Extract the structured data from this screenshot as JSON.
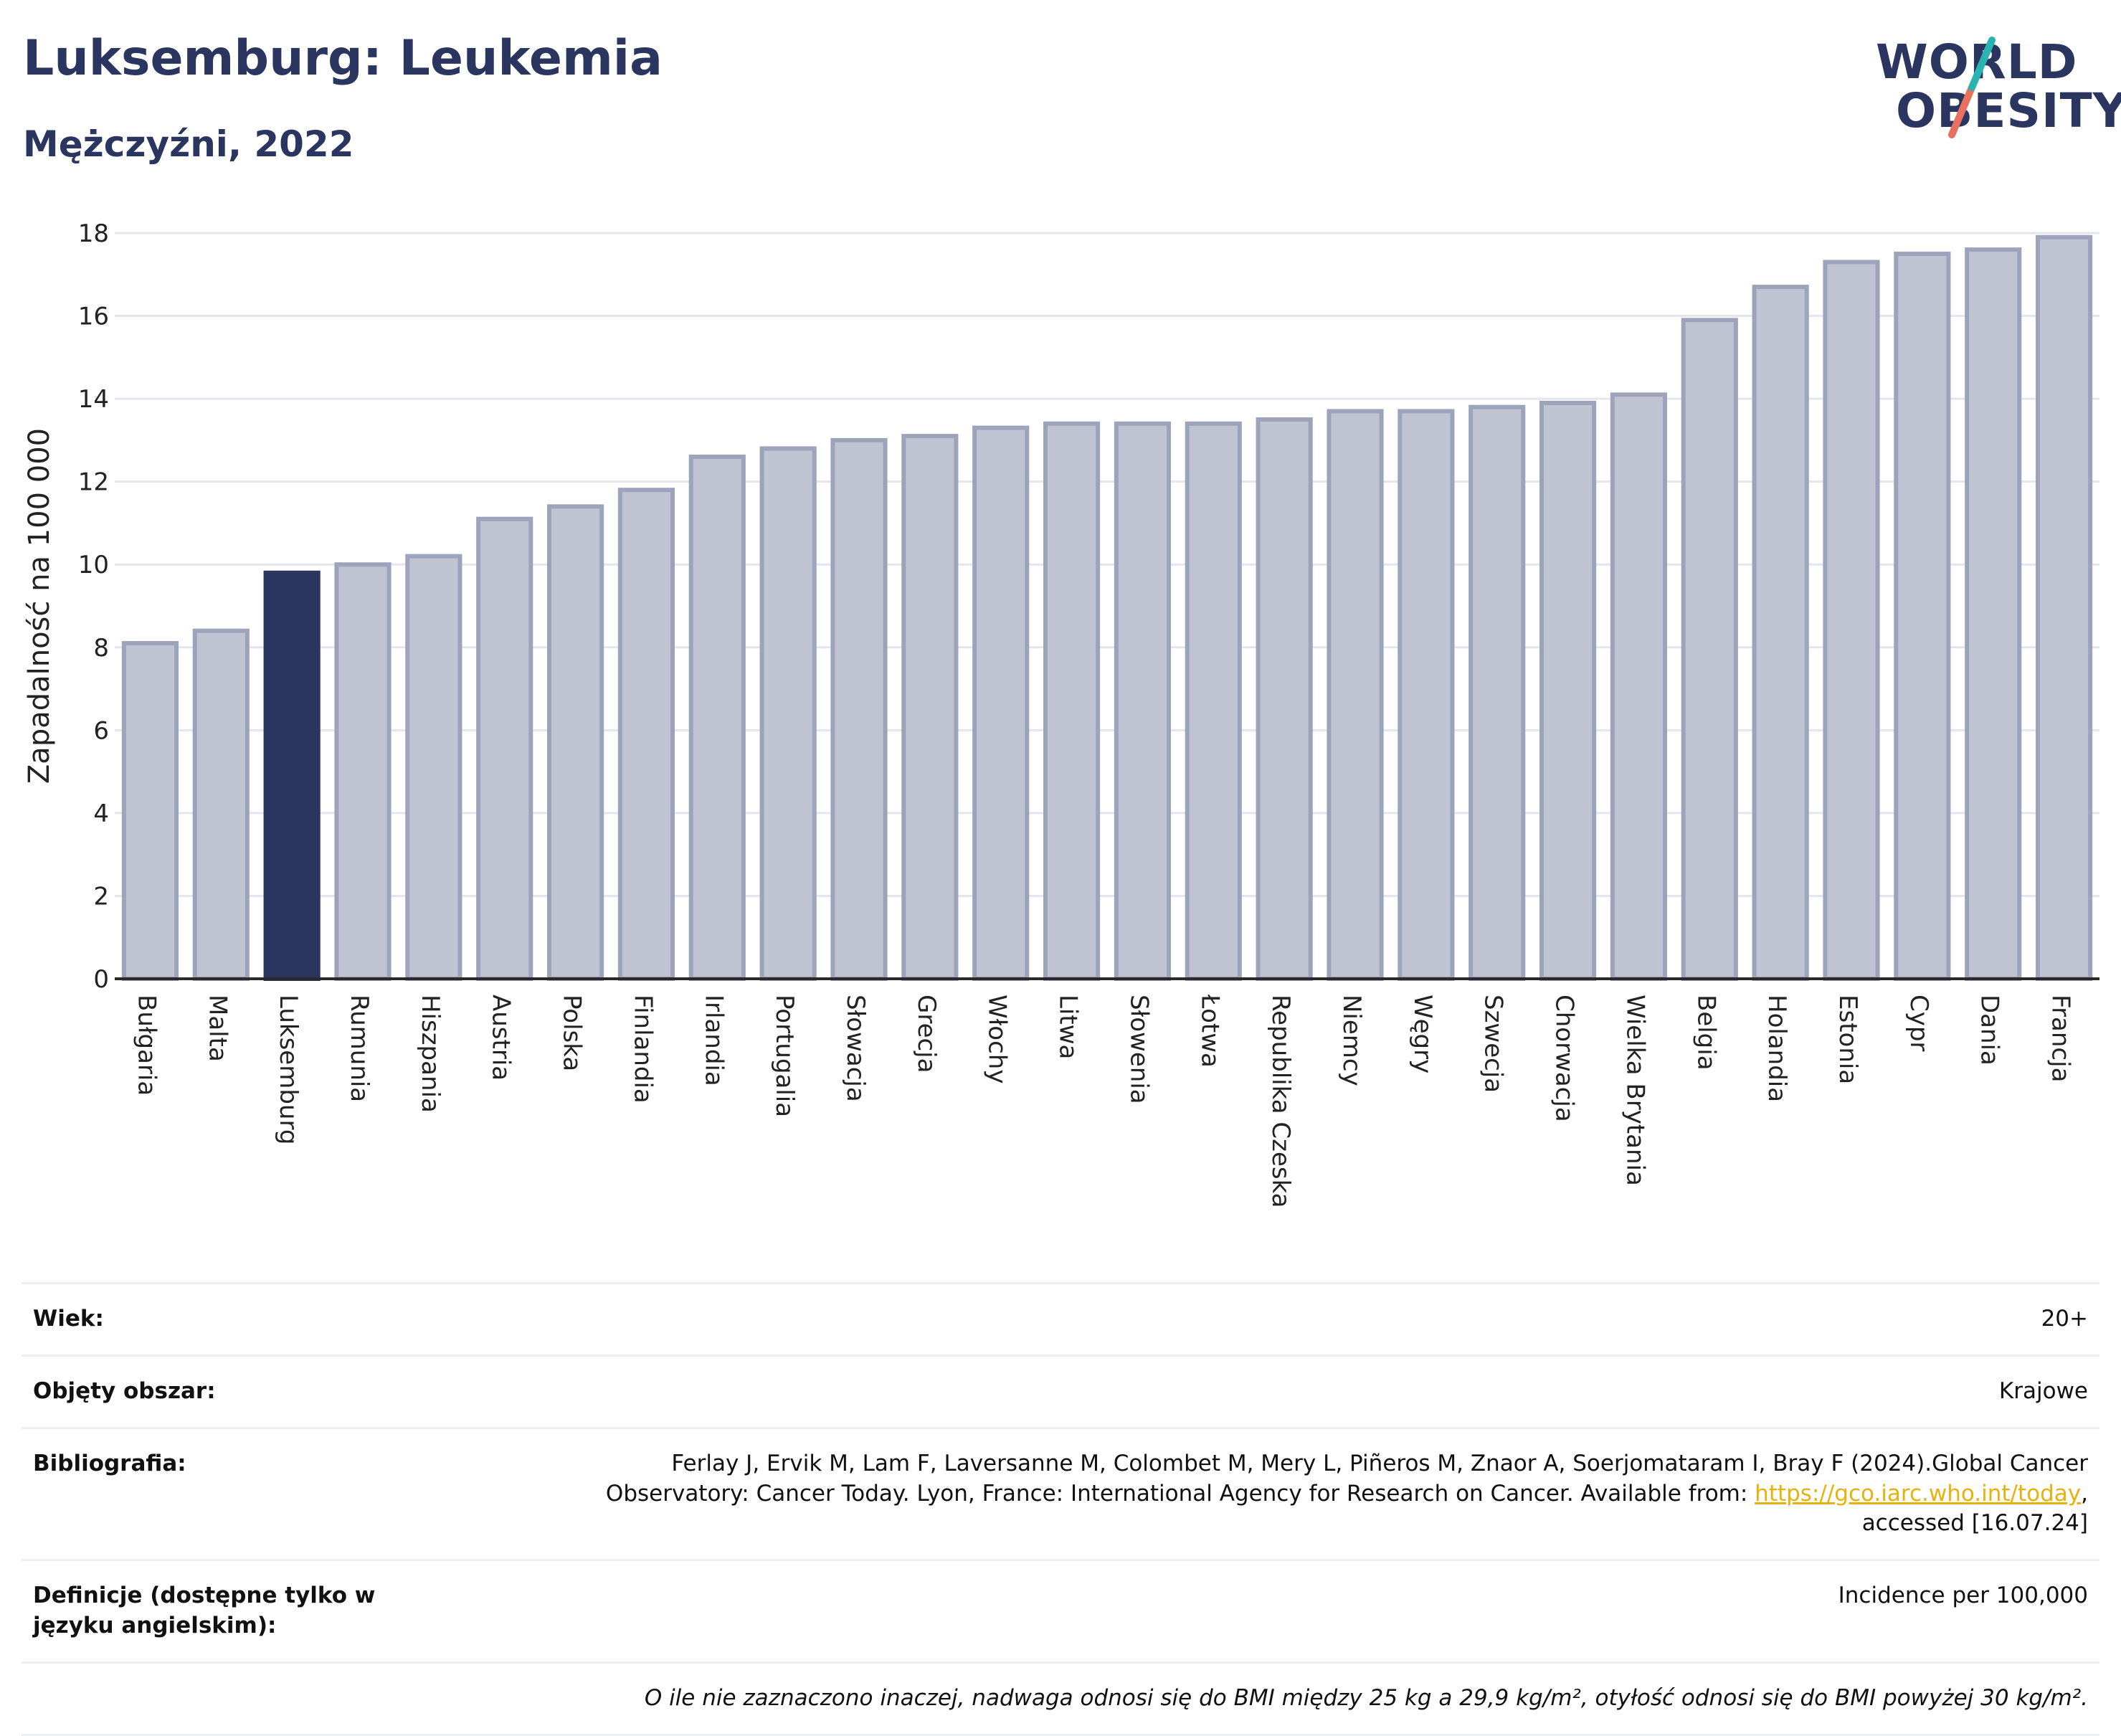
{
  "header": {
    "title": "Luksemburg: Leukemia",
    "subtitle": "Mężczyźni, 2022"
  },
  "logo": {
    "line1": "WORLD",
    "line2": "OBESITY",
    "colors": {
      "text": "#2a3560",
      "slash_teal": "#2bb3b1",
      "slash_coral": "#e8705e"
    }
  },
  "chart_data": {
    "type": "bar",
    "ylabel": "Zapadalność na 100 000",
    "ylim": [
      0,
      18
    ],
    "yticks": [
      0,
      2,
      4,
      6,
      8,
      10,
      12,
      14,
      16,
      18
    ],
    "grid": true,
    "highlight": "Luksemburg",
    "colors": {
      "bar": "#c0c4d2",
      "bar_border": "#9da3bb",
      "highlight": "#2a3560",
      "grid": "#e4e6ee",
      "axis": "#2a2a2a"
    },
    "categories": [
      "Bułgaria",
      "Malta",
      "Luksemburg",
      "Rumunia",
      "Hiszpania",
      "Austria",
      "Polska",
      "Finlandia",
      "Irlandia",
      "Portugalia",
      "Słowacja",
      "Grecja",
      "Włochy",
      "Litwa",
      "Słowenia",
      "Łotwa",
      "Republika Czeska",
      "Niemcy",
      "Węgry",
      "Szwecja",
      "Chorwacja",
      "Wielka Brytania",
      "Belgia",
      "Holandia",
      "Estonia",
      "Cypr",
      "Dania",
      "Francja"
    ],
    "values": [
      8.1,
      8.4,
      9.8,
      10.0,
      10.2,
      11.1,
      11.4,
      11.8,
      12.6,
      12.8,
      13.0,
      13.1,
      13.3,
      13.4,
      13.4,
      13.4,
      13.5,
      13.7,
      13.7,
      13.8,
      13.9,
      14.1,
      15.9,
      16.7,
      17.3,
      17.5,
      17.6,
      17.9
    ]
  },
  "meta": {
    "age_label": "Wiek:",
    "age_value": "20+",
    "coverage_label": "Objęty obszar:",
    "coverage_value": "Krajowe",
    "bibliography_label": "Bibliografia:",
    "bibliography_text_1": "Ferlay J, Ervik M, Lam F, Laversanne M, Colombet M, Mery L, Piñeros M, Znaor A, Soerjomataram I, Bray F (2024).Global Cancer",
    "bibliography_text_2": "Observatory: Cancer Today. Lyon, France: International Agency for Research on Cancer. Available from: ",
    "bibliography_link": "https://gco.iarc.who.int/today",
    "bibliography_text_3": ",",
    "bibliography_text_4": "accessed [16.07.24]",
    "definitions_label": "Definicje (dostępne tylko w języku angielskim):",
    "definitions_value": "Incidence per 100,000",
    "note": "O ile nie zaznaczono inaczej, nadwaga odnosi się do BMI między 25 kg a 29,9 kg/m², otyłość odnosi się do BMI powyżej 30 kg/m²."
  }
}
